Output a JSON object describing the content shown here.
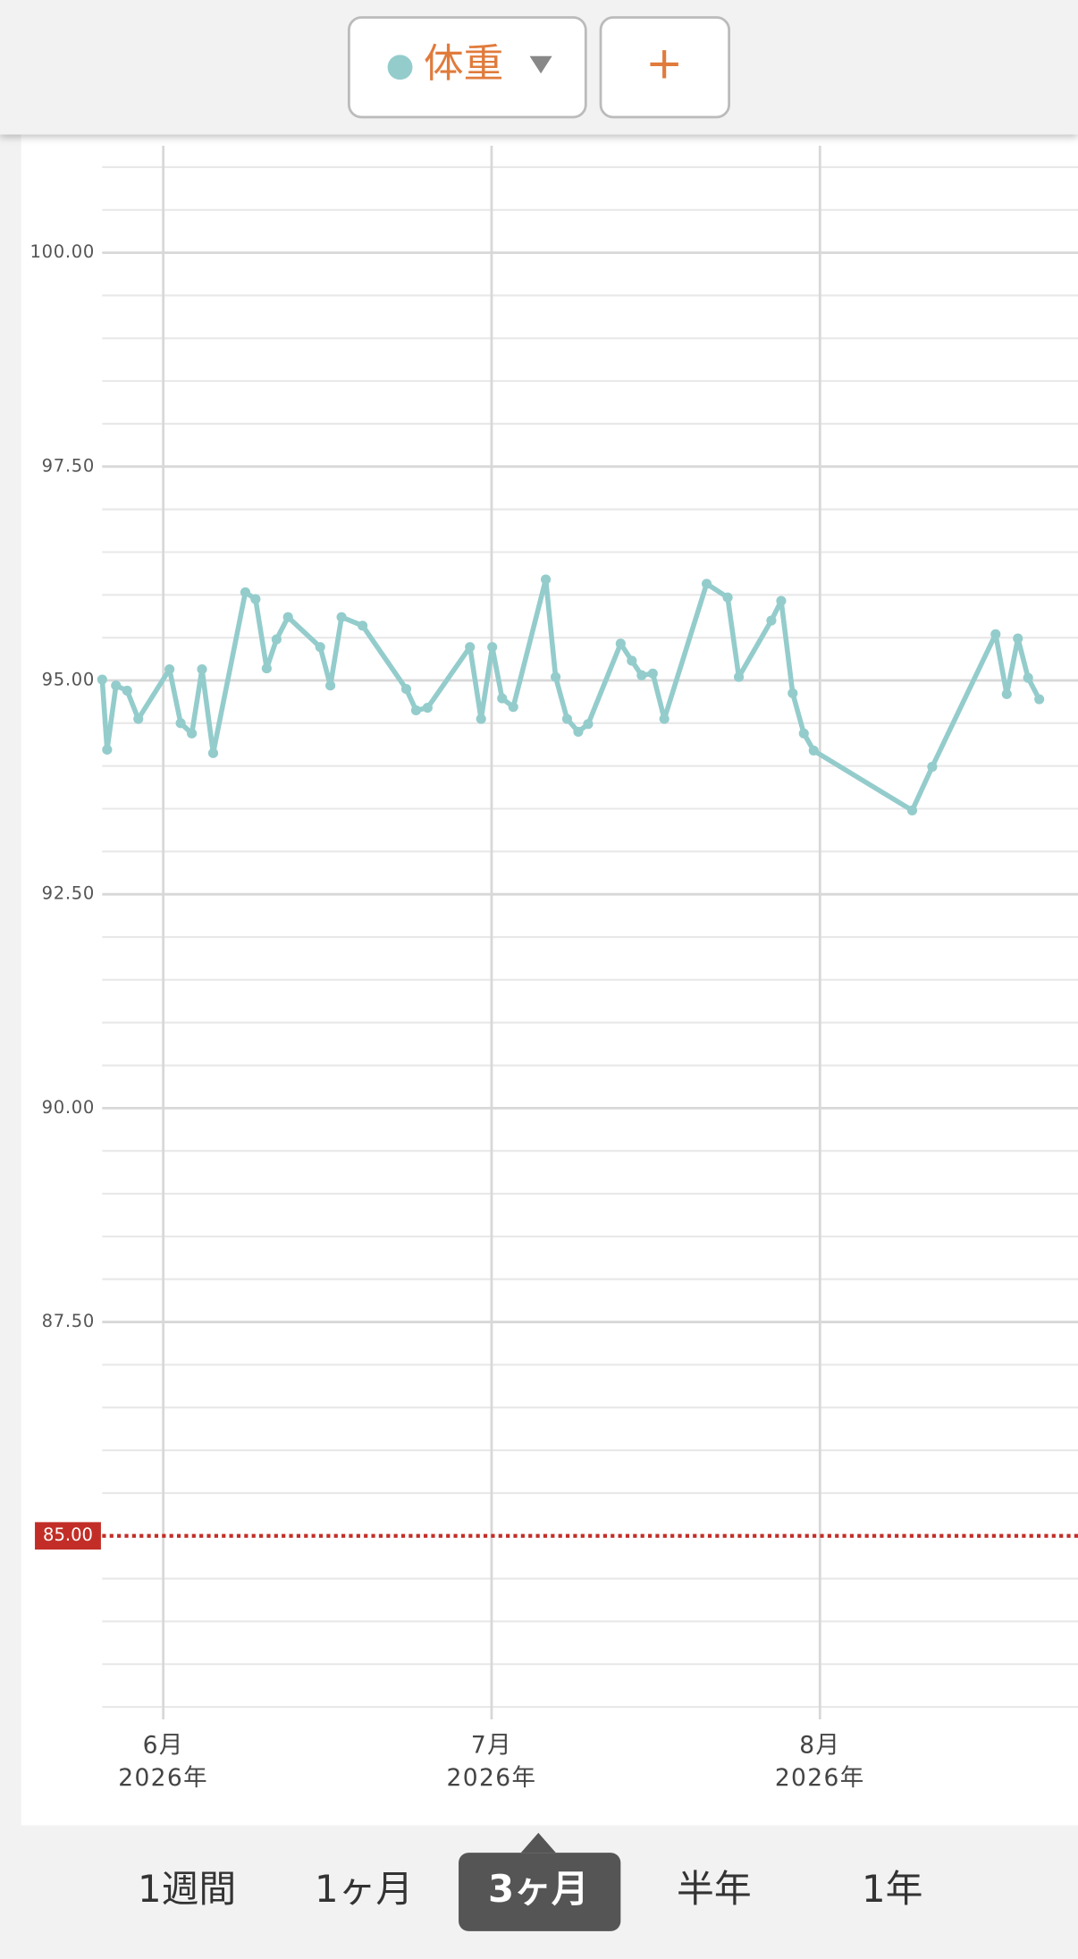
{
  "chart_data": {
    "type": "line",
    "x": [
      5.814,
      5.829,
      5.856,
      5.89,
      5.924,
      6.019,
      6.053,
      6.087,
      6.118,
      6.152,
      6.25,
      6.281,
      6.315,
      6.345,
      6.38,
      6.478,
      6.509,
      6.543,
      6.607,
      6.74,
      6.77,
      6.805,
      6.934,
      6.968,
      7.002,
      7.032,
      7.066,
      7.165,
      7.195,
      7.23,
      7.264,
      7.294,
      7.393,
      7.427,
      7.457,
      7.491,
      7.526,
      7.655,
      7.719,
      7.753,
      7.852,
      7.882,
      7.917,
      7.951,
      7.981,
      8.281,
      8.342,
      8.535,
      8.569,
      8.603,
      8.634,
      8.668
    ],
    "series": [
      {
        "name": "体重",
        "color": "#94cccc",
        "values": [
          95.01,
          94.19,
          94.94,
          94.88,
          94.55,
          95.13,
          94.5,
          94.38,
          95.13,
          94.15,
          96.03,
          95.95,
          95.14,
          95.48,
          95.74,
          95.39,
          94.94,
          95.74,
          95.64,
          94.9,
          94.65,
          94.68,
          95.39,
          94.55,
          95.39,
          94.79,
          94.69,
          96.18,
          95.04,
          94.55,
          94.4,
          94.49,
          95.43,
          95.23,
          95.06,
          95.08,
          94.55,
          96.13,
          95.97,
          95.04,
          95.7,
          95.93,
          94.85,
          94.38,
          94.18,
          93.48,
          93.99,
          95.54,
          94.84,
          95.49,
          95.03,
          94.78
        ]
      }
    ],
    "xlim": [
      5.814,
      8.786
    ],
    "xticks": [
      {
        "value": 6,
        "label": "6月\n2026年"
      },
      {
        "value": 7,
        "label": "7月\n2026年"
      },
      {
        "value": 8,
        "label": "8月\n2026年"
      }
    ],
    "ylim": [
      83,
      101.25
    ],
    "yticks": [
      {
        "value": 87.5,
        "label": "87.50"
      },
      {
        "value": 90,
        "label": "90.00"
      },
      {
        "value": 92.5,
        "label": "92.50"
      },
      {
        "value": 95,
        "label": "95.00"
      },
      {
        "value": 97.5,
        "label": "97.50"
      },
      {
        "value": 100,
        "label": "100.00"
      }
    ],
    "target": {
      "value": 85,
      "label": "85.00",
      "color": "#c22e27"
    },
    "grid": true
  },
  "ui": {
    "add_button": "+",
    "periods": [
      {
        "label": "1週間",
        "selected": false
      },
      {
        "label": "1ヶ月",
        "selected": false
      },
      {
        "label": "3ヶ月",
        "selected": true
      },
      {
        "label": "半年",
        "selected": false
      },
      {
        "label": "1年",
        "selected": false
      }
    ]
  }
}
